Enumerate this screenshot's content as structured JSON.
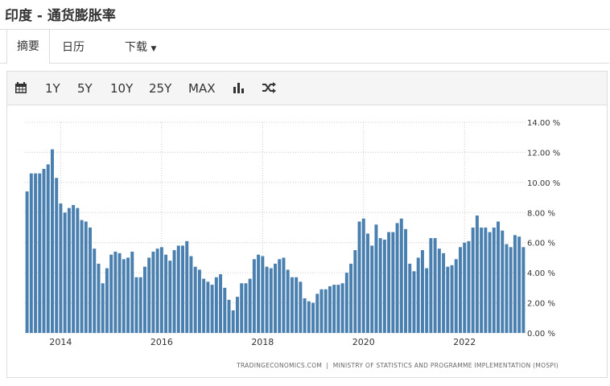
{
  "header": {
    "title": "印度 - 通货膨胀率"
  },
  "tabs": [
    "摘要",
    "日历",
    "下载"
  ],
  "ranges": [
    "1Y",
    "5Y",
    "10Y",
    "25Y",
    "MAX"
  ],
  "chart_data": {
    "type": "bar",
    "color": "#4a80b0",
    "grid": true,
    "source": "TRADINGECONOMICS.COM  |  MINISTRY OF STATISTICS AND PROGRAMME IMPLEMENTATION (MOSPI)",
    "ylim": [
      0,
      14
    ],
    "yticks": [
      {
        "value": 0,
        "label": "0.00 %"
      },
      {
        "value": 2,
        "label": "2.00 %"
      },
      {
        "value": 4,
        "label": "4.00 %"
      },
      {
        "value": 6,
        "label": "6.00 %"
      },
      {
        "value": 8,
        "label": "8.00 %"
      },
      {
        "value": 10,
        "label": "10.00 %"
      },
      {
        "value": 12,
        "label": "12.00 %"
      },
      {
        "value": 14,
        "label": "14.00 %"
      }
    ],
    "categories": [
      null,
      null,
      null,
      null,
      null,
      null,
      null,
      null,
      "2014",
      null,
      null,
      null,
      null,
      null,
      null,
      null,
      null,
      null,
      null,
      null,
      null,
      null,
      null,
      null,
      null,
      null,
      null,
      null,
      null,
      null,
      null,
      null,
      "2016",
      null,
      null,
      null,
      null,
      null,
      null,
      null,
      null,
      null,
      null,
      null,
      null,
      null,
      null,
      null,
      null,
      null,
      null,
      null,
      null,
      null,
      null,
      null,
      "2018",
      null,
      null,
      null,
      null,
      null,
      null,
      null,
      null,
      null,
      null,
      null,
      null,
      null,
      null,
      null,
      null,
      null,
      null,
      null,
      null,
      null,
      null,
      null,
      "2020",
      null,
      null,
      null,
      null,
      null,
      null,
      null,
      null,
      null,
      null,
      null,
      null,
      null,
      null,
      null,
      null,
      null,
      null,
      null,
      null,
      null,
      null,
      null,
      "2022",
      null,
      null,
      null,
      null,
      null,
      null,
      null,
      null,
      null,
      null,
      null,
      null,
      null,
      null
    ],
    "values": [
      9.4,
      10.6,
      10.6,
      10.6,
      10.9,
      11.2,
      12.2,
      10.3,
      8.6,
      8.0,
      8.3,
      8.5,
      8.3,
      7.5,
      7.4,
      7.0,
      5.6,
      4.6,
      3.3,
      4.3,
      5.2,
      5.4,
      5.3,
      4.9,
      5.0,
      5.4,
      3.7,
      3.7,
      4.4,
      5.0,
      5.4,
      5.6,
      5.7,
      5.2,
      4.8,
      5.5,
      5.8,
      5.8,
      6.1,
      5.1,
      4.4,
      4.2,
      3.6,
      3.4,
      3.2,
      3.7,
      3.9,
      3.0,
      2.2,
      1.5,
      2.4,
      3.3,
      3.3,
      3.6,
      4.9,
      5.2,
      5.1,
      4.4,
      4.3,
      4.6,
      4.9,
      5.0,
      4.2,
      3.7,
      3.7,
      3.4,
      2.3,
      2.1,
      2.0,
      2.6,
      2.9,
      2.9,
      3.1,
      3.2,
      3.2,
      3.3,
      4.0,
      4.6,
      5.5,
      7.4,
      7.6,
      6.6,
      5.8,
      7.2,
      6.3,
      6.2,
      6.7,
      6.7,
      7.3,
      7.6,
      6.9,
      4.6,
      4.1,
      5.0,
      5.5,
      4.3,
      6.3,
      6.3,
      5.6,
      5.3,
      4.4,
      4.5,
      4.9,
      5.7,
      6.0,
      6.1,
      7.0,
      7.8,
      7.0,
      7.0,
      6.7,
      7.0,
      7.4,
      6.8,
      5.9,
      5.7,
      6.5,
      6.4,
      5.7
    ]
  }
}
